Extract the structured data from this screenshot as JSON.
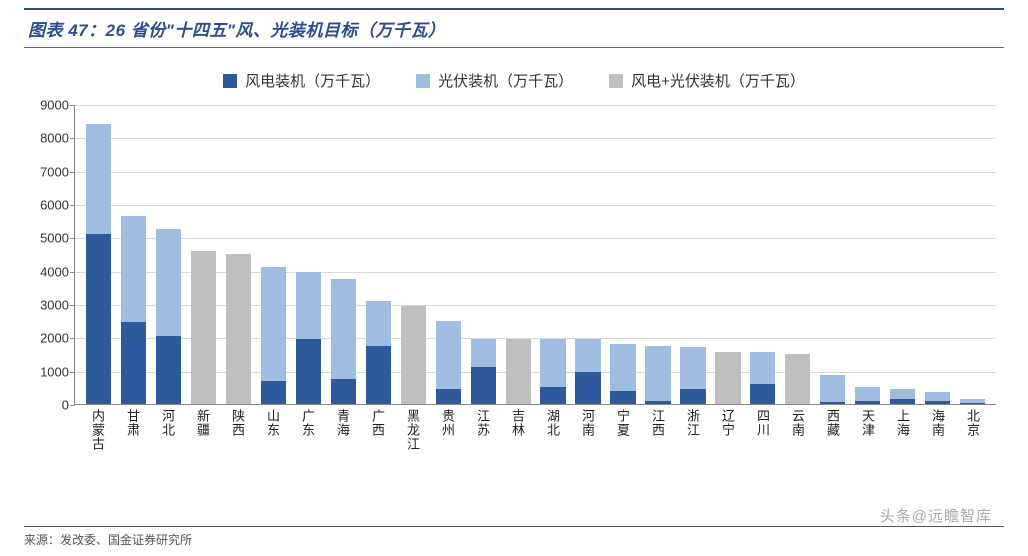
{
  "title": "图表 47：26 省份\"十四五\"风、光装机目标（万千瓦）",
  "source": "来源：发改委、国金证券研究所",
  "watermark": "头条@远瞻智库",
  "chart": {
    "type": "stacked-bar",
    "ylim": [
      0,
      9000
    ],
    "ytick_step": 1000,
    "background_color": "#ffffff",
    "grid_color": "#d9d9d9",
    "axis_color": "#888888",
    "label_fontsize": 13,
    "legend_fontsize": 15,
    "bar_width_ratio": 0.72,
    "series": [
      {
        "key": "wind",
        "label": "风电装机（万千瓦）",
        "color": "#2e5a9c"
      },
      {
        "key": "solar",
        "label": "光伏装机（万千瓦）",
        "color": "#9fbde0"
      },
      {
        "key": "combined",
        "label": "风电+光伏装机（万千瓦）",
        "color": "#bfbfbf"
      }
    ],
    "categories": [
      "内蒙古",
      "甘肃",
      "河北",
      "新疆",
      "陕西",
      "山东",
      "广东",
      "青海",
      "广西",
      "黑龙江",
      "贵州",
      "江苏",
      "吉林",
      "湖北",
      "河南",
      "宁夏",
      "江西",
      "浙江",
      "辽宁",
      "四川",
      "云南",
      "西藏",
      "天津",
      "上海",
      "海南",
      "北京"
    ],
    "data": [
      {
        "wind": 5100,
        "solar": 3300,
        "combined": 0
      },
      {
        "wind": 2450,
        "solar": 3200,
        "combined": 0
      },
      {
        "wind": 2050,
        "solar": 3200,
        "combined": 0
      },
      {
        "wind": 0,
        "solar": 0,
        "combined": 4600
      },
      {
        "wind": 0,
        "solar": 0,
        "combined": 4500
      },
      {
        "wind": 700,
        "solar": 3400,
        "combined": 0
      },
      {
        "wind": 1950,
        "solar": 2000,
        "combined": 0
      },
      {
        "wind": 750,
        "solar": 3000,
        "combined": 0
      },
      {
        "wind": 1750,
        "solar": 1350,
        "combined": 0
      },
      {
        "wind": 0,
        "solar": 0,
        "combined": 2950
      },
      {
        "wind": 450,
        "solar": 2050,
        "combined": 0
      },
      {
        "wind": 1100,
        "solar": 850,
        "combined": 0
      },
      {
        "wind": 0,
        "solar": 0,
        "combined": 1950
      },
      {
        "wind": 500,
        "solar": 1450,
        "combined": 0
      },
      {
        "wind": 950,
        "solar": 1000,
        "combined": 0
      },
      {
        "wind": 400,
        "solar": 1400,
        "combined": 0
      },
      {
        "wind": 100,
        "solar": 1650,
        "combined": 0
      },
      {
        "wind": 450,
        "solar": 1250,
        "combined": 0
      },
      {
        "wind": 0,
        "solar": 0,
        "combined": 1550
      },
      {
        "wind": 600,
        "solar": 950,
        "combined": 0
      },
      {
        "wind": 0,
        "solar": 0,
        "combined": 1500
      },
      {
        "wind": 50,
        "solar": 820,
        "combined": 0
      },
      {
        "wind": 100,
        "solar": 400,
        "combined": 0
      },
      {
        "wind": 150,
        "solar": 300,
        "combined": 0
      },
      {
        "wind": 80,
        "solar": 280,
        "combined": 0
      },
      {
        "wind": 30,
        "solar": 130,
        "combined": 0
      }
    ]
  }
}
